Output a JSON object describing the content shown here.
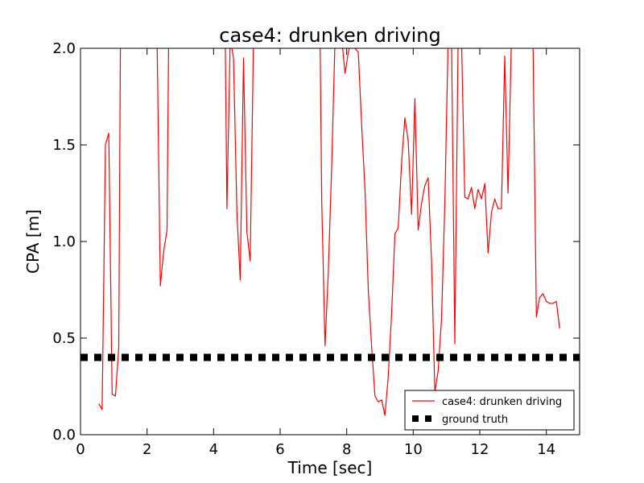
{
  "chart_data": {
    "type": "line",
    "title": "case4: drunken driving",
    "xlabel": "Time [sec]",
    "ylabel": "CPA [m]",
    "xlim": [
      0,
      15
    ],
    "ylim": [
      0,
      2.0
    ],
    "xticks": [
      "0",
      "2",
      "4",
      "6",
      "8",
      "10",
      "12",
      "14"
    ],
    "yticks": [
      "0.0",
      "0.5",
      "1.0",
      "1.5",
      "2.0"
    ],
    "grid": false,
    "legend_position": "lower-right",
    "series": [
      {
        "name": "case4: drunken driving",
        "color": "#ff0000",
        "style": "solid",
        "x": [
          0.55,
          0.65,
          0.75,
          0.85,
          0.95,
          1.05,
          1.15,
          1.2,
          2.3,
          2.4,
          2.5,
          2.6,
          2.65,
          4.35,
          4.4,
          4.5,
          4.6,
          4.7,
          4.8,
          4.9,
          5.0,
          5.1,
          5.2,
          7.2,
          7.25,
          7.35,
          7.45,
          7.55,
          7.65,
          7.75,
          7.85,
          7.95,
          8.05,
          8.15,
          8.25,
          8.35,
          8.45,
          8.55,
          8.65,
          8.75,
          8.85,
          8.95,
          9.05,
          9.15,
          9.25,
          9.35,
          9.45,
          9.55,
          9.65,
          9.75,
          9.85,
          9.95,
          10.05,
          10.15,
          10.25,
          10.35,
          10.45,
          10.55,
          10.65,
          10.75,
          10.85,
          10.95,
          11.05,
          11.15,
          11.25,
          11.35,
          11.45,
          11.55,
          11.65,
          11.75,
          11.85,
          11.95,
          12.05,
          12.15,
          12.25,
          12.35,
          12.45,
          12.55,
          12.65,
          12.75,
          12.85,
          12.95,
          13.05,
          13.6,
          13.7,
          13.8,
          13.9,
          14.0,
          14.1,
          14.2,
          14.3,
          14.4
        ],
        "y": [
          0.16,
          0.13,
          1.5,
          1.56,
          0.21,
          0.2,
          0.45,
          2.05,
          2.05,
          0.77,
          0.95,
          1.06,
          2.05,
          2.05,
          1.17,
          2.05,
          1.95,
          1.15,
          0.8,
          1.95,
          1.05,
          0.9,
          2.05,
          2.05,
          1.2,
          0.46,
          0.85,
          1.4,
          2.05,
          2.05,
          2.05,
          1.87,
          1.98,
          2.05,
          2.0,
          1.98,
          1.6,
          1.27,
          0.75,
          0.45,
          0.2,
          0.17,
          0.18,
          0.1,
          0.3,
          0.63,
          1.04,
          1.07,
          1.41,
          1.64,
          1.52,
          1.14,
          1.74,
          1.06,
          1.2,
          1.29,
          1.33,
          0.9,
          0.22,
          0.33,
          0.6,
          1.2,
          2.05,
          2.05,
          0.47,
          2.05,
          2.05,
          1.23,
          1.22,
          1.28,
          1.17,
          1.27,
          1.22,
          1.3,
          0.94,
          1.15,
          1.22,
          1.17,
          1.17,
          1.96,
          1.25,
          2.05,
          2.05,
          2.05,
          0.61,
          0.71,
          0.73,
          0.69,
          0.68,
          0.68,
          0.69,
          0.55
        ]
      },
      {
        "name": "ground truth",
        "color": "#000000",
        "style": "dashed-square",
        "x": [
          0,
          15
        ],
        "y": [
          0.4,
          0.4
        ]
      }
    ]
  }
}
